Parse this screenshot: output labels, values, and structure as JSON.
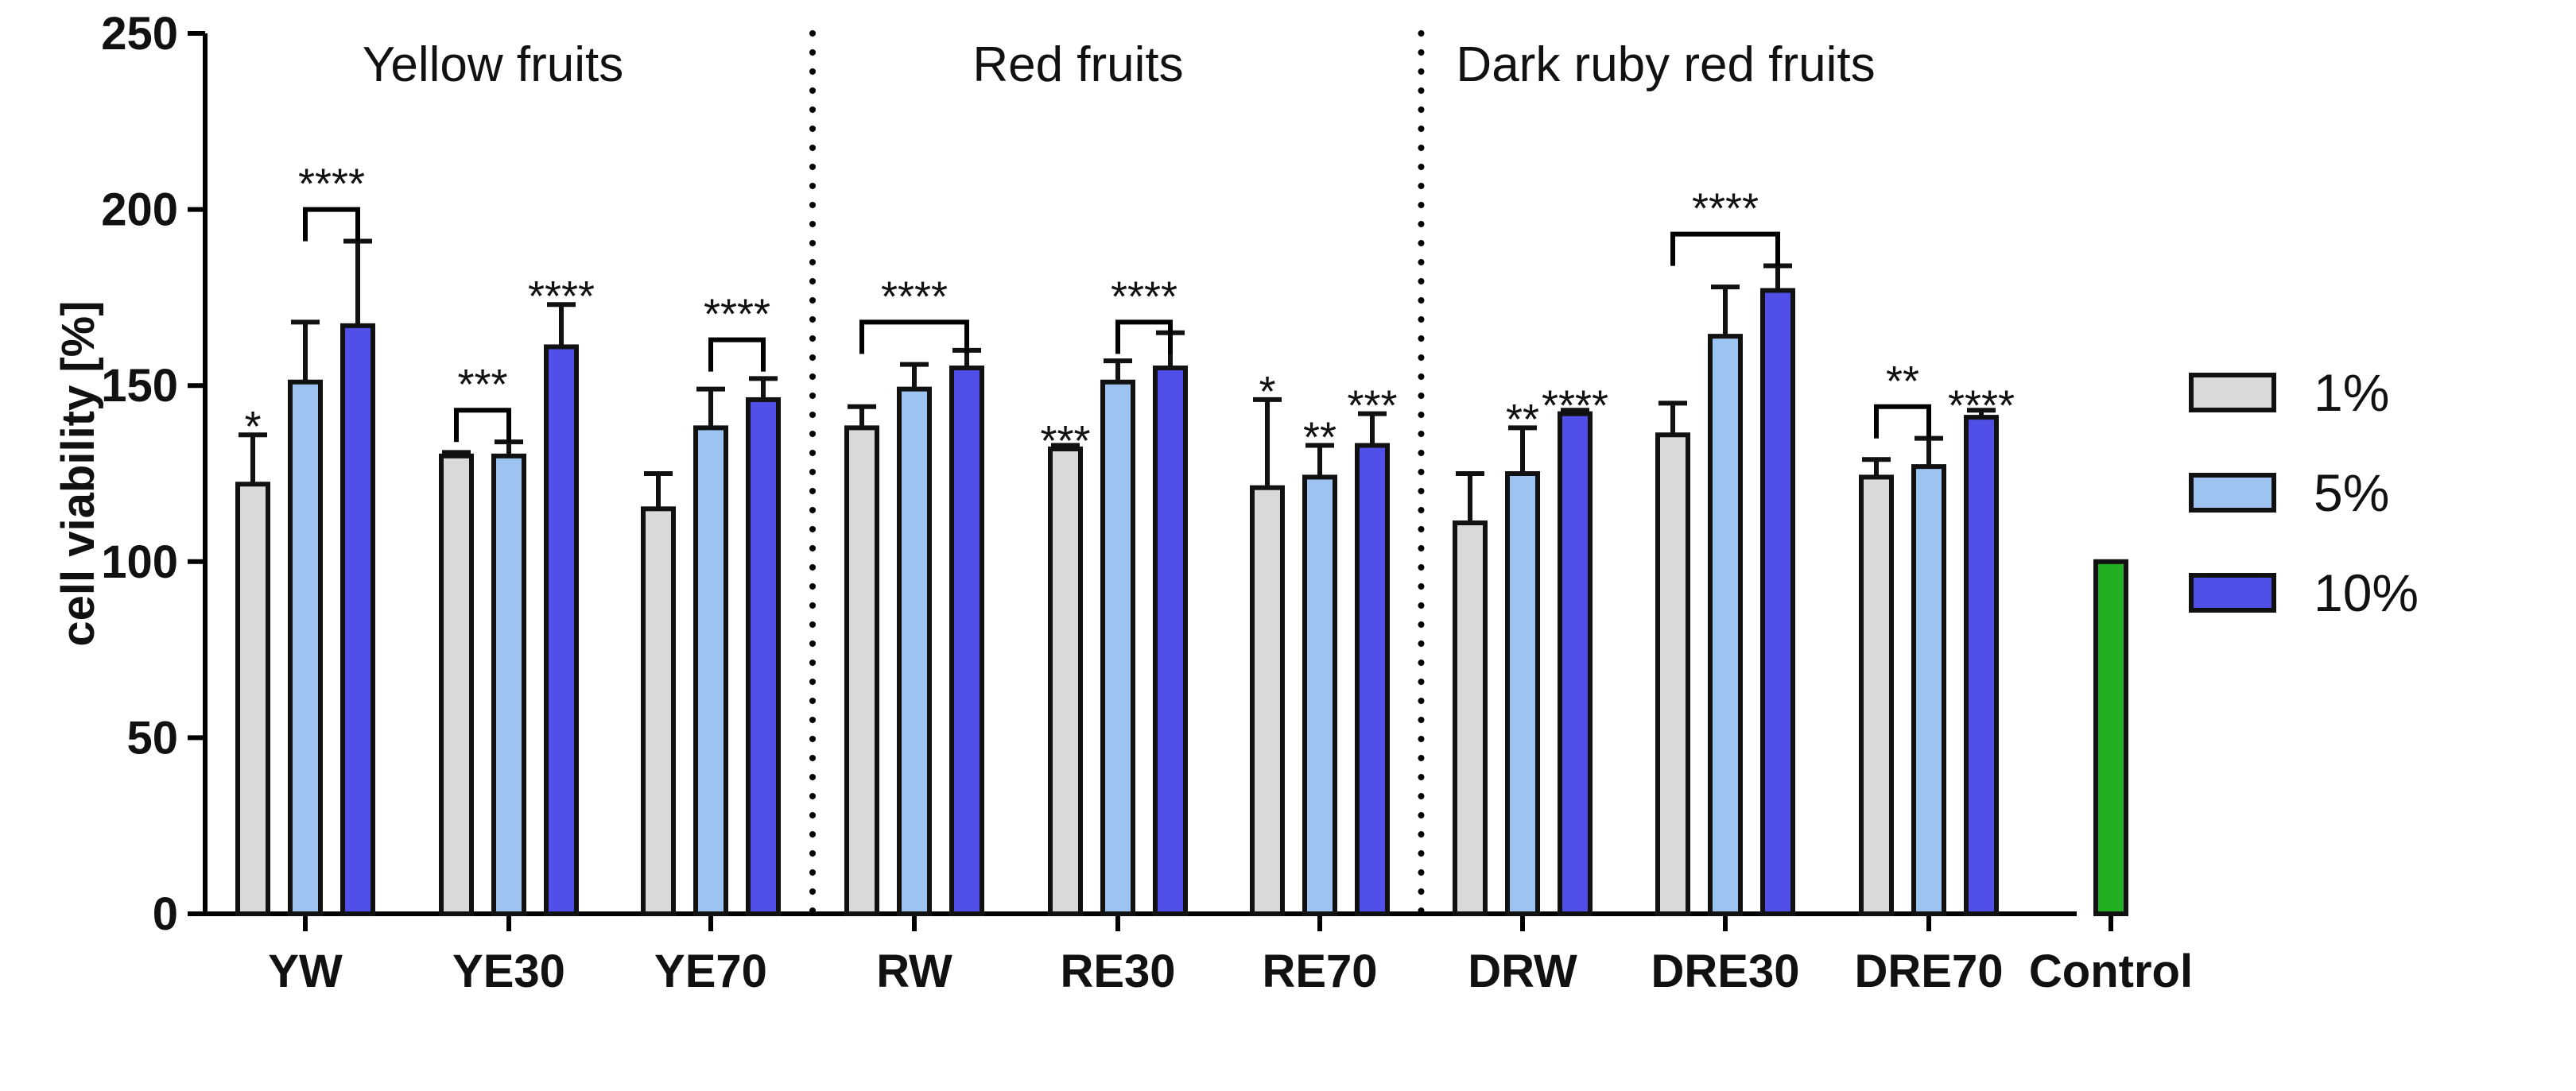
{
  "chart_data": {
    "type": "bar",
    "title": "",
    "xlabel": "",
    "ylabel": "cell viability [%]",
    "ylim": [
      0,
      250
    ],
    "yticks": [
      0,
      50,
      100,
      150,
      200,
      250
    ],
    "grid": false,
    "legend_position": "right",
    "categories": [
      "YW",
      "YE30",
      "YE70",
      "RW",
      "RE30",
      "RE70",
      "DRW",
      "DRE30",
      "DRE70",
      "Control"
    ],
    "series": [
      {
        "name": "1%",
        "color": "#d9d9d9",
        "values": [
          122,
          130,
          115,
          138,
          132,
          121,
          111,
          136,
          124,
          null
        ],
        "errors": [
          14,
          1,
          10,
          6,
          1,
          25,
          14,
          9,
          5,
          null
        ]
      },
      {
        "name": "5%",
        "color": "#9dc3f0",
        "values": [
          151,
          130,
          138,
          149,
          151,
          124,
          125,
          164,
          127,
          null
        ],
        "errors": [
          17,
          4,
          11,
          7,
          6,
          9,
          13,
          14,
          8,
          null
        ]
      },
      {
        "name": "10%",
        "color": "#5050e8",
        "values": [
          167,
          161,
          146,
          155,
          155,
          133,
          142,
          177,
          141,
          null
        ],
        "errors": [
          24,
          12,
          6,
          5,
          10,
          9,
          1,
          7,
          2,
          null
        ]
      }
    ],
    "control": {
      "category": "Control",
      "value": 100,
      "color": "#22b022"
    },
    "groups": [
      {
        "label": "Yellow fruits",
        "categories": [
          "YW",
          "YE30",
          "YE70"
        ]
      },
      {
        "label": "Red fruits",
        "categories": [
          "RW",
          "RE30",
          "RE70"
        ]
      },
      {
        "label": "Dark ruby red fruits",
        "categories": [
          "DRW",
          "DRE30",
          "DRE70"
        ]
      }
    ],
    "annotations": [
      {
        "text": "*",
        "category": "YW",
        "series": "1%",
        "y": 141
      },
      {
        "text": "****",
        "category": "YW",
        "bracket": [
          "5%",
          "10%"
        ],
        "y": 200
      },
      {
        "text": "***",
        "category": "YE30",
        "bracket": [
          "1%",
          "5%"
        ],
        "y": 143
      },
      {
        "text": "****",
        "category": "YE30",
        "series": "10%",
        "y": 178
      },
      {
        "text": "****",
        "category": "YE70",
        "bracket": [
          "5%",
          "10%"
        ],
        "y": 163
      },
      {
        "text": "****",
        "category": "RW",
        "bracket": [
          "1%",
          "10%"
        ],
        "y": 168
      },
      {
        "text": "***",
        "category": "RE30",
        "series": "1%",
        "y": 137
      },
      {
        "text": "****",
        "category": "RE30",
        "bracket": [
          "5%",
          "10%"
        ],
        "y": 168
      },
      {
        "text": "*",
        "category": "RE70",
        "series": "1%",
        "y": 151
      },
      {
        "text": "**",
        "category": "RE70",
        "series": "5%",
        "y": 138
      },
      {
        "text": "***",
        "category": "RE70",
        "series": "10%",
        "y": 147
      },
      {
        "text": "**",
        "category": "DRW",
        "series": "5%",
        "y": 143
      },
      {
        "text": "****",
        "category": "DRW",
        "series": "10%",
        "y": 147
      },
      {
        "text": "****",
        "category": "DRE30",
        "bracket": [
          "1%",
          "10%"
        ],
        "y": 193
      },
      {
        "text": "**",
        "category": "DRE70",
        "bracket": [
          "1%",
          "5%"
        ],
        "y": 144
      },
      {
        "text": "****",
        "category": "DRE70",
        "series": "10%",
        "y": 147
      }
    ]
  }
}
